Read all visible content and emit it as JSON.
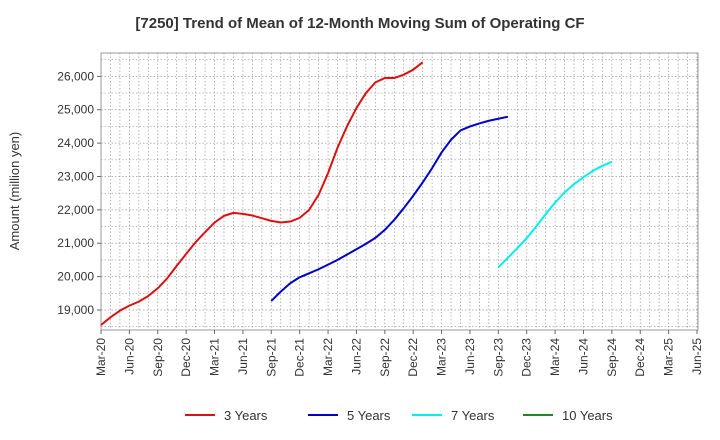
{
  "chart_data": {
    "type": "line",
    "title": "[7250]  Trend of Mean of 12-Month Moving Sum of Operating CF",
    "xlabel": "",
    "ylabel": "Amount (million yen)",
    "ylim": [
      18400,
      26700
    ],
    "yticks": [
      19000,
      20000,
      21000,
      22000,
      23000,
      24000,
      25000,
      26000
    ],
    "ytick_labels": [
      "19,000",
      "20,000",
      "21,000",
      "22,000",
      "23,000",
      "24,000",
      "25,000",
      "26,000"
    ],
    "xticks": [
      "Mar-20",
      "Jun-20",
      "Sep-20",
      "Dec-20",
      "Mar-21",
      "Jun-21",
      "Sep-21",
      "Dec-21",
      "Mar-22",
      "Jun-22",
      "Sep-22",
      "Dec-22",
      "Mar-23",
      "Jun-23",
      "Sep-23",
      "Dec-23",
      "Mar-24",
      "Jun-24",
      "Sep-24",
      "Dec-24",
      "Mar-25",
      "Jun-25"
    ],
    "grid": true,
    "legend_position": "bottom",
    "series": [
      {
        "name": "3 Years",
        "color": "#dd1111",
        "start_index": 0,
        "values": [
          18550,
          18780,
          18980,
          19130,
          19250,
          19420,
          19650,
          19950,
          20320,
          20680,
          21030,
          21330,
          21620,
          21820,
          21910,
          21880,
          21830,
          21750,
          21670,
          21620,
          21650,
          21760,
          22000,
          22450,
          23100,
          23860,
          24500,
          25050,
          25500,
          25820,
          25950,
          25950,
          26050,
          26200,
          26420
        ]
      },
      {
        "name": "5 Years",
        "color": "#0000cc",
        "start_index": 18,
        "values": [
          19270,
          19550,
          19800,
          19980,
          20100,
          20220,
          20360,
          20500,
          20660,
          20820,
          20980,
          21160,
          21400,
          21700,
          22050,
          22420,
          22820,
          23250,
          23720,
          24100,
          24380,
          24500,
          24590,
          24670,
          24730,
          24790
        ]
      },
      {
        "name": "7 Years",
        "color": "#00eeee",
        "start_index": 42,
        "values": [
          20280,
          20560,
          20850,
          21150,
          21500,
          21870,
          22220,
          22520,
          22770,
          22980,
          23170,
          23320,
          23440
        ]
      },
      {
        "name": "10 Years",
        "color": "#228822",
        "start_index": 0,
        "values": []
      }
    ]
  }
}
